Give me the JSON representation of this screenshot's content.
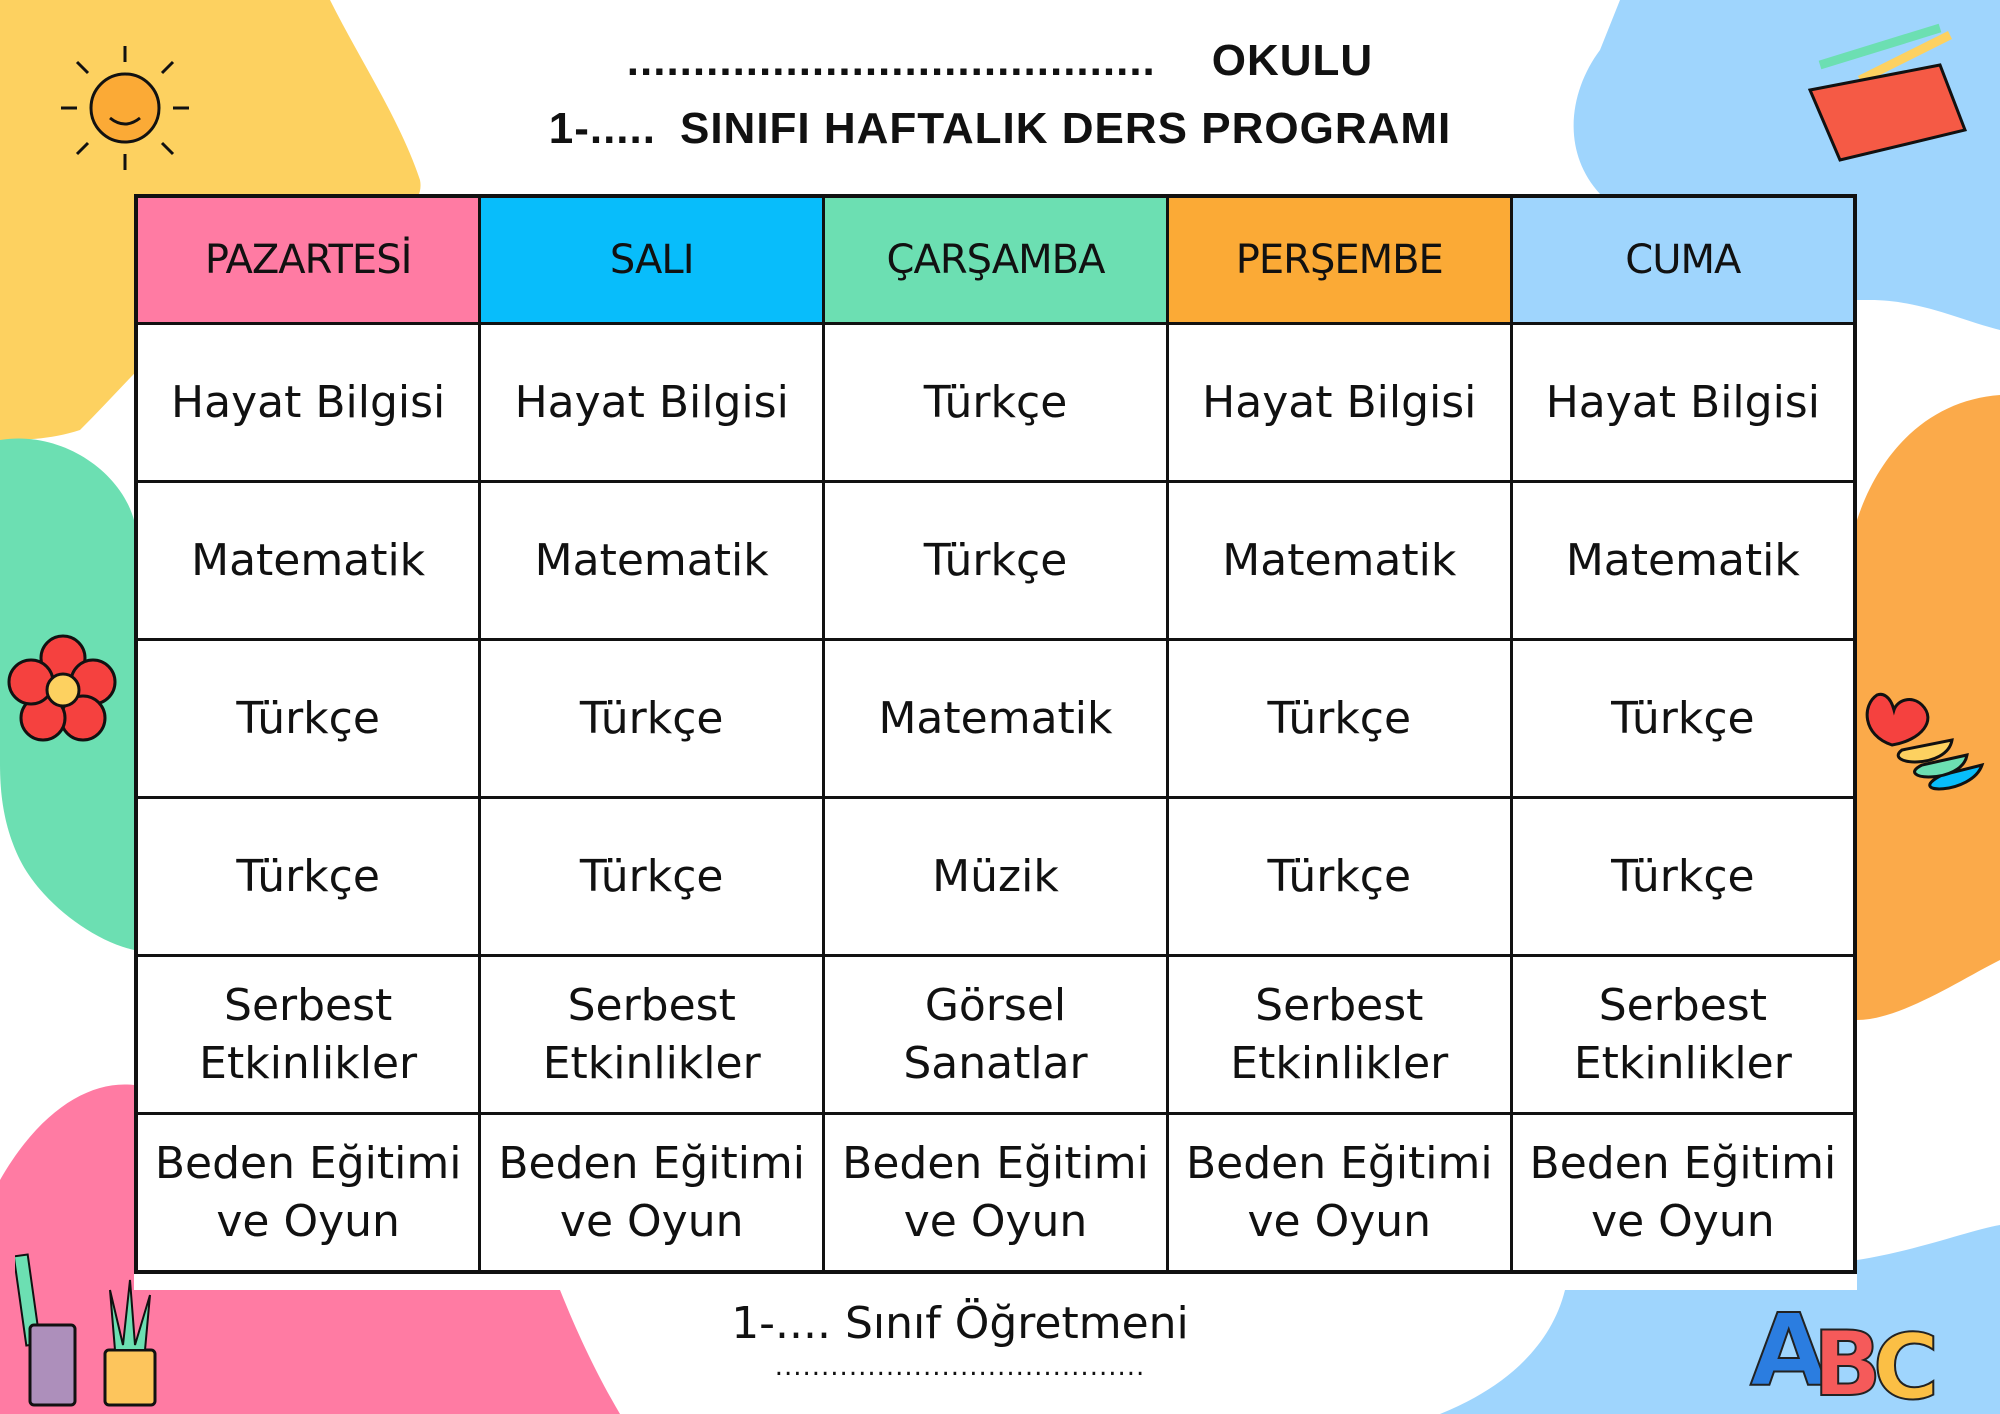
{
  "header": {
    "school_blank": "........................................",
    "school_label": "OKULU",
    "class_prefix": "1-.....",
    "program_title": "SINIFI HAFTALIK DERS PROGRAMI"
  },
  "colors": {
    "monday": "#ff7ba3",
    "tuesday": "#08bdfb",
    "wednesday": "#6cdfb2",
    "thursday": "#fbaa36",
    "friday": "#9fd5fd",
    "blob_yellow": "#fdd160",
    "blob_green": "#6cdfb2",
    "blob_pink": "#ff7ba3",
    "blob_blue": "#9fd5fd",
    "blob_orange": "#fbaa4a"
  },
  "days": [
    "PAZARTESİ",
    "SALI",
    "ÇARŞAMBA",
    "PERŞEMBE",
    "CUMA"
  ],
  "schedule": [
    [
      "Hayat Bilgisi",
      "Hayat Bilgisi",
      "Türkçe",
      "Hayat Bilgisi",
      "Hayat Bilgisi"
    ],
    [
      "Matematik",
      "Matematik",
      "Türkçe",
      "Matematik",
      "Matematik"
    ],
    [
      "Türkçe",
      "Türkçe",
      "Matematik",
      "Türkçe",
      "Türkçe"
    ],
    [
      "Türkçe",
      "Türkçe",
      "Müzik",
      "Türkçe",
      "Türkçe"
    ],
    [
      "Serbest Etkinlikler",
      "Serbest Etkinlikler",
      "Görsel Sanatlar",
      "Serbest Etkinlikler",
      "Serbest Etkinlikler"
    ],
    [
      "Beden Eğitimi ve Oyun",
      "Beden Eğitimi ve Oyun",
      "Beden Eğitimi ve Oyun",
      "Beden Eğitimi ve Oyun",
      "Beden Eğitimi ve Oyun"
    ]
  ],
  "footer": {
    "teacher_label": "1-.... Sınıf Öğretmeni",
    "signature_blank": "........................................"
  },
  "decorations": [
    "sun-icon",
    "pencil-case-icon",
    "flower-icon",
    "hearts-icon",
    "pencil-cup-icon",
    "plant-pot-icon",
    "abc-letters-icon"
  ]
}
